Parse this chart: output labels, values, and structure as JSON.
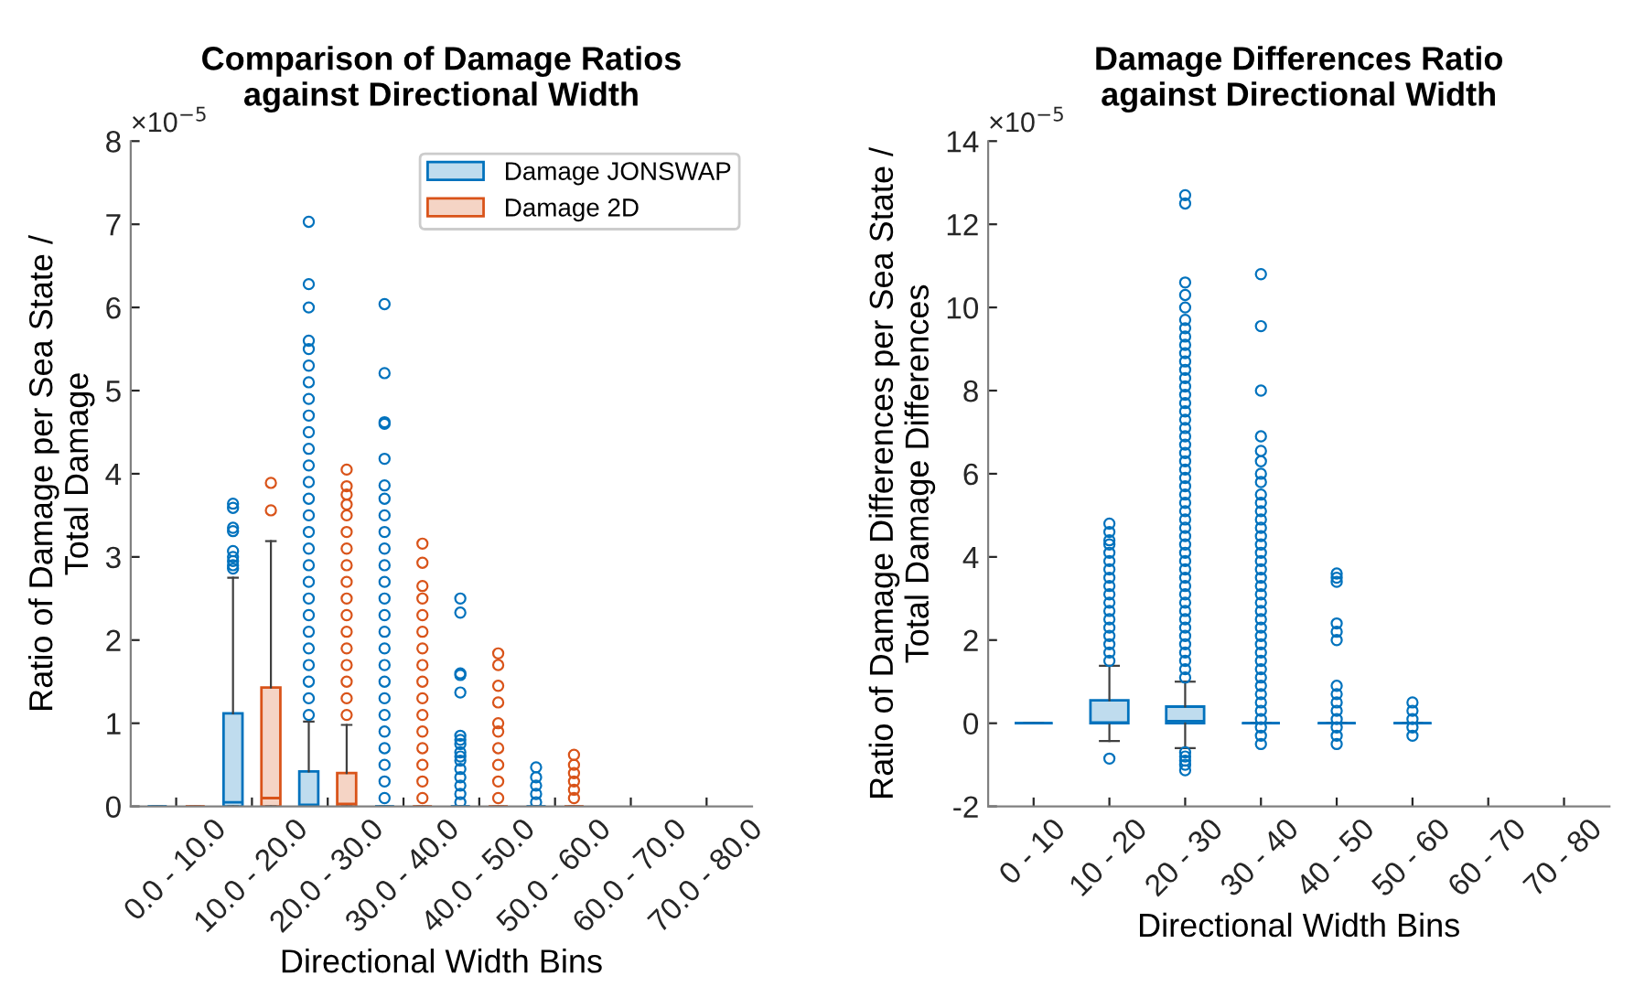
{
  "chart_data": [
    {
      "type": "box",
      "title": "Comparison of Damage Ratios\nagainst Directional Width",
      "xlabel": "Directional Width Bins",
      "ylabel": "Ratio of Damage per Sea State /\nTotal Damage",
      "categories": [
        "0.0 - 10.0",
        "10.0 - 20.0",
        "20.0 - 30.0",
        "30.0 - 40.0",
        "40.0 - 50.0",
        "50.0 - 60.0",
        "60.0 - 70.0",
        "70.0 - 80.0"
      ],
      "ylim": [
        0,
        8
      ],
      "yticks": [
        0,
        1,
        2,
        3,
        4,
        5,
        6,
        7,
        8
      ],
      "annotations": [
        "×10$^{−5}$"
      ],
      "legend": "top right",
      "grid": false,
      "marker": "circle",
      "series": [
        {
          "name": "Damage JONSWAP",
          "color": "#0072bd",
          "boxes": [
            {
              "low": 0,
              "q1": 0,
              "median": 0,
              "q3": 0,
              "high": 0
            },
            {
              "low": 0,
              "q1": 0,
              "median": 0.05,
              "q3": 1.12,
              "high": 2.75,
              "outliers": [
                2.86,
                2.9,
                2.95,
                3.0,
                3.07,
                3.31,
                3.35,
                3.59,
                3.64
              ]
            },
            {
              "low": 0,
              "q1": 0,
              "median": 0.02,
              "q3": 0.42,
              "high": 1.02,
              "outliers": [
                1.1,
                1.3,
                1.5,
                1.7,
                1.9,
                2.1,
                2.3,
                2.5,
                2.7,
                2.9,
                3.1,
                3.3,
                3.5,
                3.7,
                3.9,
                4.1,
                4.3,
                4.5,
                4.7,
                4.9,
                5.1,
                5.3,
                5.5,
                5.6,
                6.0,
                6.28,
                7.03
              ]
            },
            {
              "low": 0,
              "q1": 0,
              "median": 0,
              "q3": 0,
              "high": 0,
              "outliers": [
                0.1,
                0.3,
                0.5,
                0.7,
                0.9,
                1.1,
                1.3,
                1.5,
                1.7,
                1.9,
                2.1,
                2.3,
                2.5,
                2.7,
                2.9,
                3.1,
                3.3,
                3.5,
                3.7,
                3.86,
                4.18,
                4.6,
                4.62,
                5.21,
                6.04
              ]
            },
            {
              "low": 0,
              "q1": 0,
              "median": 0,
              "q3": 0,
              "high": 0,
              "outliers": [
                0.05,
                0.15,
                0.25,
                0.35,
                0.45,
                0.55,
                0.6,
                0.65,
                0.75,
                0.8,
                0.85,
                1.37,
                1.58,
                1.6,
                2.33,
                2.5
              ]
            },
            {
              "low": 0,
              "q1": 0,
              "median": 0,
              "q3": 0,
              "high": 0,
              "outliers": [
                0.05,
                0.15,
                0.25,
                0.35,
                0.47
              ]
            },
            null,
            null
          ]
        },
        {
          "name": "Damage 2D",
          "color": "#d95319",
          "boxes": [
            {
              "low": 0,
              "q1": 0,
              "median": 0,
              "q3": 0,
              "high": 0
            },
            {
              "low": 0,
              "q1": 0,
              "median": 0.1,
              "q3": 1.43,
              "high": 3.19,
              "outliers": [
                3.56,
                3.89
              ]
            },
            {
              "low": 0,
              "q1": 0,
              "median": 0.03,
              "q3": 0.4,
              "high": 0.98,
              "outliers": [
                1.1,
                1.3,
                1.5,
                1.7,
                1.9,
                2.1,
                2.3,
                2.5,
                2.7,
                2.9,
                3.1,
                3.3,
                3.5,
                3.63,
                3.75,
                3.85,
                4.05
              ]
            },
            {
              "low": 0,
              "q1": 0,
              "median": 0,
              "q3": 0,
              "high": 0,
              "outliers": [
                0.1,
                0.3,
                0.5,
                0.7,
                0.9,
                1.1,
                1.3,
                1.5,
                1.7,
                1.9,
                2.1,
                2.3,
                2.5,
                2.65,
                2.93,
                3.16
              ]
            },
            {
              "low": 0,
              "q1": 0,
              "median": 0,
              "q3": 0,
              "high": 0,
              "outliers": [
                0.1,
                0.3,
                0.5,
                0.7,
                0.9,
                1.0,
                1.25,
                1.45,
                1.7,
                1.84
              ]
            },
            {
              "low": 0,
              "q1": 0,
              "median": 0,
              "q3": 0,
              "high": 0,
              "outliers": [
                0.1,
                0.2,
                0.3,
                0.4,
                0.5,
                0.62
              ]
            },
            null,
            null
          ]
        }
      ]
    },
    {
      "type": "box",
      "title": "Damage Differences Ratio\nagainst Directional Width",
      "xlabel": "Directional Width Bins",
      "ylabel": "Ratio of Damage Differences per Sea State /\nTotal Damage Differences",
      "categories": [
        "0 - 10",
        "10 - 20",
        "20 - 30",
        "30 - 40",
        "40 - 50",
        "50 - 60",
        "60 - 70",
        "70 - 80"
      ],
      "ylim": [
        -2,
        14
      ],
      "yticks": [
        -2,
        0,
        2,
        4,
        6,
        8,
        10,
        12,
        14
      ],
      "annotations": [
        "×10$^{−5}$"
      ],
      "grid": false,
      "marker": "circle",
      "series": [
        {
          "color": "#0072bd",
          "boxes": [
            {
              "low": 0,
              "q1": 0,
              "median": 0,
              "q3": 0,
              "high": 0
            },
            {
              "low": -0.43,
              "q1": 0,
              "median": 0.02,
              "q3": 0.55,
              "high": 1.38,
              "outliers": [
                -0.85,
                1.5,
                1.7,
                1.9,
                2.1,
                2.3,
                2.5,
                2.7,
                2.9,
                3.1,
                3.3,
                3.5,
                3.7,
                3.9,
                4.1,
                4.3,
                4.4,
                4.6,
                4.8
              ]
            },
            {
              "low": -0.6,
              "q1": 0,
              "median": 0.05,
              "q3": 0.4,
              "high": 1.0,
              "outliers": [
                -0.7,
                -0.8,
                -0.9,
                -1.0,
                -1.13,
                1.1,
                1.3,
                1.5,
                1.7,
                1.9,
                2.1,
                2.3,
                2.5,
                2.7,
                2.9,
                3.1,
                3.3,
                3.5,
                3.7,
                3.9,
                4.1,
                4.3,
                4.5,
                4.7,
                4.9,
                5.1,
                5.3,
                5.5,
                5.7,
                5.9,
                6.1,
                6.3,
                6.5,
                6.7,
                6.9,
                7.1,
                7.3,
                7.5,
                7.7,
                7.9,
                8.1,
                8.3,
                8.5,
                8.7,
                8.9,
                9.1,
                9.3,
                9.5,
                9.7,
                10.0,
                10.3,
                10.6,
                12.5,
                12.7
              ]
            },
            {
              "low": 0,
              "q1": 0,
              "median": 0,
              "q3": 0,
              "high": 0,
              "outliers": [
                -0.5,
                -0.3,
                -0.1,
                0.1,
                0.3,
                0.5,
                0.7,
                0.9,
                1.1,
                1.3,
                1.5,
                1.7,
                1.9,
                2.1,
                2.3,
                2.5,
                2.7,
                2.9,
                3.1,
                3.3,
                3.5,
                3.7,
                3.9,
                4.1,
                4.3,
                4.5,
                4.7,
                4.9,
                5.1,
                5.3,
                5.5,
                5.8,
                6.0,
                6.3,
                6.55,
                6.9,
                8.0,
                9.55,
                10.8
              ]
            },
            {
              "low": 0,
              "q1": 0,
              "median": 0,
              "q3": 0,
              "high": 0,
              "outliers": [
                -0.5,
                -0.3,
                -0.1,
                0.1,
                0.3,
                0.5,
                0.7,
                0.9,
                2.0,
                2.2,
                2.4,
                3.4,
                3.5,
                3.6
              ]
            },
            {
              "low": 0,
              "q1": 0,
              "median": 0,
              "q3": 0,
              "high": 0,
              "outliers": [
                -0.3,
                -0.1,
                0.1,
                0.3,
                0.5
              ]
            },
            null,
            null
          ]
        }
      ]
    }
  ]
}
